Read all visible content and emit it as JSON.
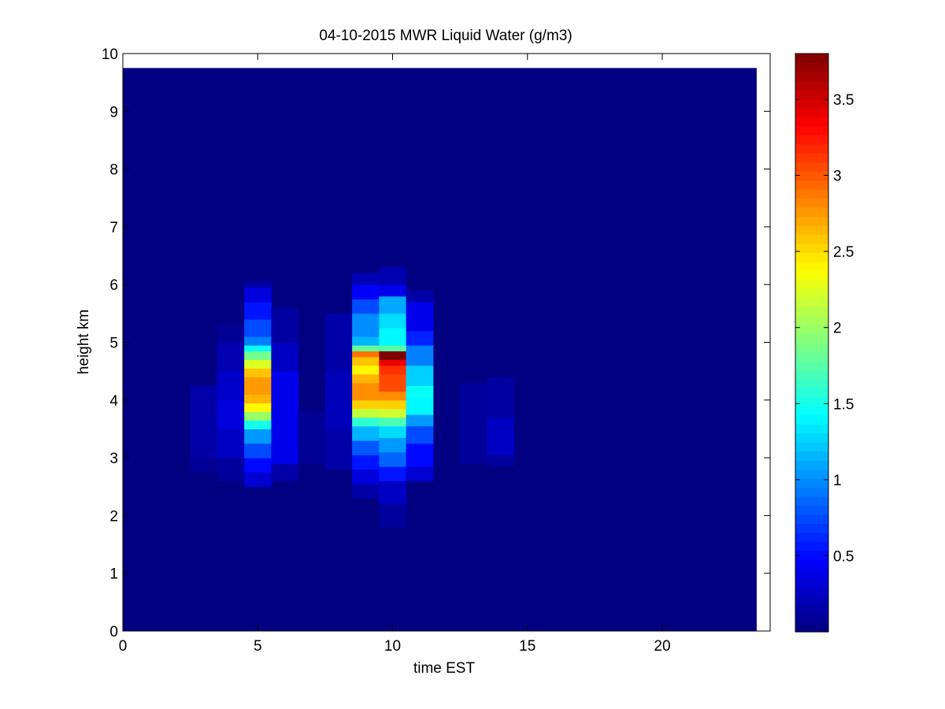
{
  "chart_data": {
    "type": "heatmap",
    "title": "04-10-2015 MWR Liquid Water (g/m3)",
    "xlabel": "time EST",
    "ylabel": "height km",
    "xlim": [
      0,
      24
    ],
    "ylim": [
      0,
      10
    ],
    "x_ticks": [
      0,
      5,
      10,
      15,
      20
    ],
    "y_ticks": [
      0,
      1,
      2,
      3,
      4,
      5,
      6,
      7,
      8,
      9,
      10
    ],
    "x_tick_labels": [
      "0",
      "5",
      "10",
      "15",
      "20"
    ],
    "y_tick_labels": [
      "0",
      "1",
      "2",
      "3",
      "4",
      "5",
      "6",
      "7",
      "8",
      "9",
      "10"
    ],
    "colormap": "jet",
    "clim": [
      0,
      3.8
    ],
    "colorbar": {
      "ticks": [
        0.5,
        1,
        1.5,
        2,
        2.5,
        3,
        3.5
      ],
      "tick_labels": [
        "0.5",
        "1",
        "1.5",
        "2",
        "2.5",
        "3",
        "3.5"
      ],
      "location": "right"
    },
    "x_edges": [
      0,
      23.5
    ],
    "y_edges": [
      0,
      9.75
    ],
    "background_value": 0,
    "grid": false,
    "columns": [
      {
        "x": [
          2.5,
          3.5
        ],
        "cells": [
          {
            "y": [
              2.75,
              3.0
            ],
            "v": 0.08
          },
          {
            "y": [
              3.0,
              4.25
            ],
            "v": 0.15
          }
        ]
      },
      {
        "x": [
          3.5,
          4.5
        ],
        "cells": [
          {
            "y": [
              2.6,
              3.0
            ],
            "v": 0.1
          },
          {
            "y": [
              3.0,
              3.5
            ],
            "v": 0.25
          },
          {
            "y": [
              3.5,
              4.0
            ],
            "v": 0.35
          },
          {
            "y": [
              4.0,
              4.5
            ],
            "v": 0.28
          },
          {
            "y": [
              4.5,
              5.0
            ],
            "v": 0.18
          },
          {
            "y": [
              5.0,
              5.3
            ],
            "v": 0.08
          }
        ]
      },
      {
        "x": [
          4.5,
          5.5
        ],
        "cells": [
          {
            "y": [
              2.5,
              2.75
            ],
            "v": 0.3
          },
          {
            "y": [
              2.75,
              3.0
            ],
            "v": 0.5
          },
          {
            "y": [
              3.0,
              3.25
            ],
            "v": 0.75
          },
          {
            "y": [
              3.25,
              3.5
            ],
            "v": 1.05
          },
          {
            "y": [
              3.5,
              3.65
            ],
            "v": 1.5
          },
          {
            "y": [
              3.65,
              3.8
            ],
            "v": 2.0
          },
          {
            "y": [
              3.8,
              3.95
            ],
            "v": 2.4
          },
          {
            "y": [
              3.95,
              4.1
            ],
            "v": 2.65
          },
          {
            "y": [
              4.1,
              4.4
            ],
            "v": 2.75
          },
          {
            "y": [
              4.4,
              4.55
            ],
            "v": 2.6
          },
          {
            "y": [
              4.55,
              4.7
            ],
            "v": 2.25
          },
          {
            "y": [
              4.7,
              4.85
            ],
            "v": 1.85
          },
          {
            "y": [
              4.85,
              4.95
            ],
            "v": 1.45
          },
          {
            "y": [
              4.95,
              5.1
            ],
            "v": 0.95
          },
          {
            "y": [
              5.1,
              5.4
            ],
            "v": 0.75
          },
          {
            "y": [
              5.4,
              5.7
            ],
            "v": 0.55
          },
          {
            "y": [
              5.7,
              5.95
            ],
            "v": 0.35
          },
          {
            "y": [
              5.95,
              6.05
            ],
            "v": 0.15
          }
        ]
      },
      {
        "x": [
          5.5,
          6.5
        ],
        "cells": [
          {
            "y": [
              2.6,
              2.9
            ],
            "v": 0.15
          },
          {
            "y": [
              2.9,
              4.5
            ],
            "v": 0.4
          },
          {
            "y": [
              4.5,
              5.0
            ],
            "v": 0.25
          },
          {
            "y": [
              5.0,
              5.6
            ],
            "v": 0.12
          }
        ]
      },
      {
        "x": [
          6.5,
          7.5
        ],
        "cells": [
          {
            "y": [
              2.9,
              3.8
            ],
            "v": 0.08
          }
        ]
      },
      {
        "x": [
          7.5,
          8.5
        ],
        "cells": [
          {
            "y": [
              2.8,
              3.5
            ],
            "v": 0.15
          },
          {
            "y": [
              3.5,
              4.5
            ],
            "v": 0.22
          },
          {
            "y": [
              4.5,
              5.5
            ],
            "v": 0.15
          }
        ]
      },
      {
        "x": [
          8.5,
          9.5
        ],
        "cells": [
          {
            "y": [
              2.3,
              2.55
            ],
            "v": 0.15
          },
          {
            "y": [
              2.55,
              2.8
            ],
            "v": 0.35
          },
          {
            "y": [
              2.8,
              3.05
            ],
            "v": 0.55
          },
          {
            "y": [
              3.05,
              3.3
            ],
            "v": 0.8
          },
          {
            "y": [
              3.3,
              3.55
            ],
            "v": 1.15
          },
          {
            "y": [
              3.55,
              3.7
            ],
            "v": 1.6
          },
          {
            "y": [
              3.7,
              3.85
            ],
            "v": 2.15
          },
          {
            "y": [
              3.85,
              4.0
            ],
            "v": 2.55
          },
          {
            "y": [
              4.0,
              4.3
            ],
            "v": 2.8
          },
          {
            "y": [
              4.3,
              4.45
            ],
            "v": 2.65
          },
          {
            "y": [
              4.45,
              4.6
            ],
            "v": 2.4
          },
          {
            "y": [
              4.6,
              4.75
            ],
            "v": 2.6
          },
          {
            "y": [
              4.75,
              4.85
            ],
            "v": 2.9
          },
          {
            "y": [
              4.85,
              4.95
            ],
            "v": 1.8
          },
          {
            "y": [
              4.95,
              5.1
            ],
            "v": 1.15
          },
          {
            "y": [
              5.1,
              5.5
            ],
            "v": 1.0
          },
          {
            "y": [
              5.5,
              5.75
            ],
            "v": 0.75
          },
          {
            "y": [
              5.75,
              6.0
            ],
            "v": 0.45
          },
          {
            "y": [
              6.0,
              6.2
            ],
            "v": 0.2
          }
        ]
      },
      {
        "x": [
          9.5,
          10.5
        ],
        "cells": [
          {
            "y": [
              1.8,
              2.2
            ],
            "v": 0.1
          },
          {
            "y": [
              2.2,
              2.6
            ],
            "v": 0.25
          },
          {
            "y": [
              2.6,
              2.85
            ],
            "v": 0.55
          },
          {
            "y": [
              2.85,
              3.1
            ],
            "v": 0.85
          },
          {
            "y": [
              3.1,
              3.35
            ],
            "v": 1.05
          },
          {
            "y": [
              3.35,
              3.55
            ],
            "v": 1.3
          },
          {
            "y": [
              3.55,
              3.7
            ],
            "v": 1.7
          },
          {
            "y": [
              3.7,
              3.85
            ],
            "v": 2.2
          },
          {
            "y": [
              3.85,
              4.0
            ],
            "v": 2.55
          },
          {
            "y": [
              4.0,
              4.15
            ],
            "v": 2.8
          },
          {
            "y": [
              4.15,
              4.45
            ],
            "v": 3.05
          },
          {
            "y": [
              4.45,
              4.6
            ],
            "v": 3.15
          },
          {
            "y": [
              4.6,
              4.7
            ],
            "v": 3.4
          },
          {
            "y": [
              4.7,
              4.85
            ],
            "v": 3.8
          },
          {
            "y": [
              4.85,
              4.95
            ],
            "v": 1.75
          },
          {
            "y": [
              4.95,
              5.25
            ],
            "v": 1.4
          },
          {
            "y": [
              5.25,
              5.5
            ],
            "v": 1.3
          },
          {
            "y": [
              5.5,
              5.8
            ],
            "v": 1.1
          },
          {
            "y": [
              5.8,
              6.0
            ],
            "v": 0.4
          },
          {
            "y": [
              6.0,
              6.3
            ],
            "v": 0.18
          }
        ]
      },
      {
        "x": [
          10.5,
          11.5
        ],
        "cells": [
          {
            "y": [
              2.6,
              2.85
            ],
            "v": 0.3
          },
          {
            "y": [
              2.85,
              3.25
            ],
            "v": 0.5
          },
          {
            "y": [
              3.25,
              3.55
            ],
            "v": 0.75
          },
          {
            "y": [
              3.55,
              3.75
            ],
            "v": 1.05
          },
          {
            "y": [
              3.75,
              4.05
            ],
            "v": 1.4
          },
          {
            "y": [
              4.05,
              4.25
            ],
            "v": 1.45
          },
          {
            "y": [
              4.25,
              4.6
            ],
            "v": 1.25
          },
          {
            "y": [
              4.6,
              4.95
            ],
            "v": 0.95
          },
          {
            "y": [
              4.95,
              5.2
            ],
            "v": 0.6
          },
          {
            "y": [
              5.2,
              5.7
            ],
            "v": 0.4
          },
          {
            "y": [
              5.7,
              5.9
            ],
            "v": 0.15
          }
        ]
      },
      {
        "x": [
          12.5,
          13.5
        ],
        "cells": [
          {
            "y": [
              2.9,
              4.3
            ],
            "v": 0.1
          }
        ]
      },
      {
        "x": [
          13.5,
          14.5
        ],
        "cells": [
          {
            "y": [
              2.85,
              3.05
            ],
            "v": 0.1
          },
          {
            "y": [
              3.05,
              3.7
            ],
            "v": 0.25
          },
          {
            "y": [
              3.7,
              4.4
            ],
            "v": 0.12
          }
        ]
      }
    ]
  }
}
